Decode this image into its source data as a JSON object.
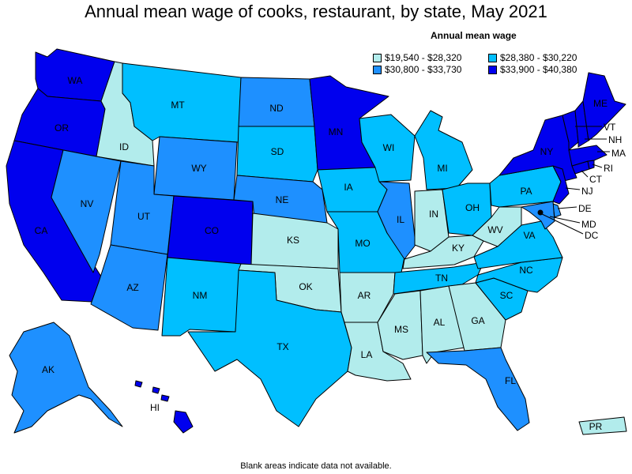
{
  "title": "Annual mean wage of cooks, restaurant, by state, May 2021",
  "legend": {
    "title": "Annual mean wage",
    "items": [
      {
        "range": "$19,540 - $28,320",
        "color": "#b2ecec"
      },
      {
        "range": "$28,380 - $30,220",
        "color": "#00bfff"
      },
      {
        "range": "$30,800 - $33,730",
        "color": "#1e90ff"
      },
      {
        "range": "$33,900 - $40,380",
        "color": "#0000ee"
      }
    ]
  },
  "footnote": "Blank areas indicate data not available.",
  "states": {
    "WA": {
      "label": "WA",
      "tier": 3
    },
    "OR": {
      "label": "OR",
      "tier": 3
    },
    "CA": {
      "label": "CA",
      "tier": 3
    },
    "ID": {
      "label": "ID",
      "tier": 0
    },
    "NV": {
      "label": "NV",
      "tier": 2
    },
    "MT": {
      "label": "MT",
      "tier": 1
    },
    "WY": {
      "label": "WY",
      "tier": 2
    },
    "UT": {
      "label": "UT",
      "tier": 2
    },
    "AZ": {
      "label": "AZ",
      "tier": 2
    },
    "CO": {
      "label": "CO",
      "tier": 3
    },
    "NM": {
      "label": "NM",
      "tier": 1
    },
    "ND": {
      "label": "ND",
      "tier": 2
    },
    "SD": {
      "label": "SD",
      "tier": 1
    },
    "NE": {
      "label": "NE",
      "tier": 2
    },
    "KS": {
      "label": "KS",
      "tier": 0
    },
    "OK": {
      "label": "OK",
      "tier": 0
    },
    "TX": {
      "label": "TX",
      "tier": 1
    },
    "MN": {
      "label": "MN",
      "tier": 3
    },
    "IA": {
      "label": "IA",
      "tier": 1
    },
    "MO": {
      "label": "MO",
      "tier": 1
    },
    "AR": {
      "label": "AR",
      "tier": 0
    },
    "LA": {
      "label": "LA",
      "tier": 0
    },
    "WI": {
      "label": "WI",
      "tier": 1
    },
    "IL": {
      "label": "IL",
      "tier": 2
    },
    "MI": {
      "label": "MI",
      "tier": 1
    },
    "IN": {
      "label": "IN",
      "tier": 0
    },
    "OH": {
      "label": "OH",
      "tier": 1
    },
    "KY": {
      "label": "KY",
      "tier": 0
    },
    "TN": {
      "label": "TN",
      "tier": 1
    },
    "MS": {
      "label": "MS",
      "tier": 0
    },
    "AL": {
      "label": "AL",
      "tier": 0
    },
    "GA": {
      "label": "GA",
      "tier": 0
    },
    "FL": {
      "label": "FL",
      "tier": 2
    },
    "SC": {
      "label": "SC",
      "tier": 1
    },
    "NC": {
      "label": "NC",
      "tier": 1
    },
    "VA": {
      "label": "VA",
      "tier": 1
    },
    "WV": {
      "label": "WV",
      "tier": 0
    },
    "PA": {
      "label": "PA",
      "tier": 1
    },
    "NY": {
      "label": "NY",
      "tier": 3
    },
    "VT": {
      "label": "VT",
      "tier": 3
    },
    "NH": {
      "label": "NH",
      "tier": 3
    },
    "ME": {
      "label": "ME",
      "tier": 3
    },
    "MA": {
      "label": "MA",
      "tier": 3
    },
    "RI": {
      "label": "RI",
      "tier": 3
    },
    "CT": {
      "label": "CT",
      "tier": 3
    },
    "NJ": {
      "label": "NJ",
      "tier": 3
    },
    "DE": {
      "label": "DE",
      "tier": 2
    },
    "MD": {
      "label": "MD",
      "tier": 2
    },
    "DC": {
      "label": "DC",
      "tier": 3
    },
    "AK": {
      "label": "AK",
      "tier": 2
    },
    "HI": {
      "label": "HI",
      "tier": 3
    },
    "PR": {
      "label": "PR",
      "tier": 0
    }
  }
}
